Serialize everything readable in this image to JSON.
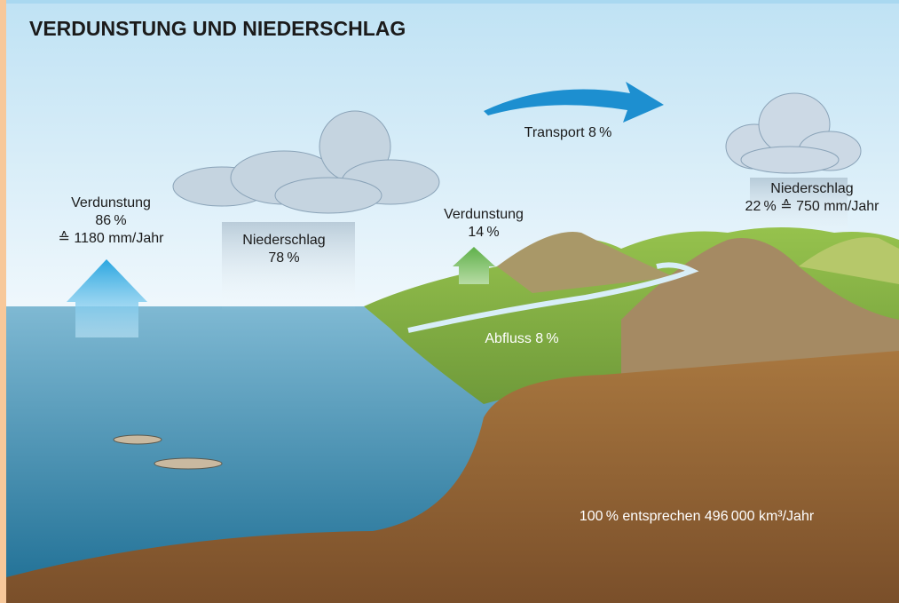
{
  "title": "VERDUNSTUNG UND NIEDERSCHLAG",
  "labels": [
    {
      "lines": [
        "Verdunstung",
        "86 %",
        "≙ 1180 mm/Jahr"
      ]
    },
    {
      "lines": [
        "Niederschlag",
        "78 %"
      ]
    },
    {
      "lines": [
        "Transport 8 %"
      ]
    },
    {
      "lines": [
        "Verdunstung",
        "14 %"
      ]
    },
    {
      "lines": [
        "Niederschlag",
        "22 % ≙ 750 mm/Jahr"
      ]
    },
    {
      "lines": [
        "Abfluss 8 %"
      ]
    },
    {
      "lines": [
        "100 % entsprechen 496 000 km³/Jahr"
      ]
    }
  ]
}
